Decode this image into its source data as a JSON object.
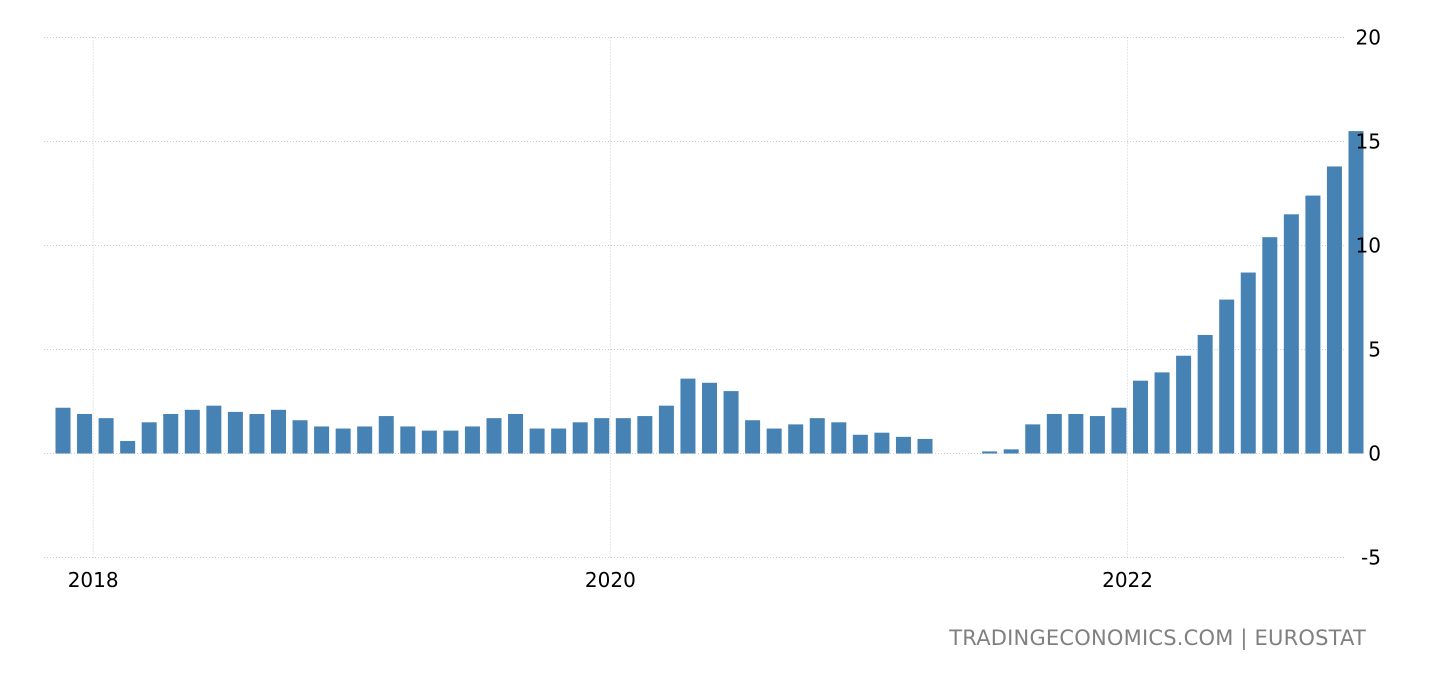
{
  "chart_data": {
    "type": "bar",
    "title": "",
    "xlabel": "",
    "ylabel": "",
    "x": [
      "2017-12",
      "2018-01",
      "2018-02",
      "2018-03",
      "2018-04",
      "2018-05",
      "2018-06",
      "2018-07",
      "2018-08",
      "2018-09",
      "2018-10",
      "2018-11",
      "2018-12",
      "2019-01",
      "2019-02",
      "2019-03",
      "2019-04",
      "2019-05",
      "2019-06",
      "2019-07",
      "2019-08",
      "2019-09",
      "2019-10",
      "2019-11",
      "2019-12",
      "2020-01",
      "2020-02",
      "2020-03",
      "2020-04",
      "2020-05",
      "2020-06",
      "2020-07",
      "2020-08",
      "2020-09",
      "2020-10",
      "2020-11",
      "2020-12",
      "2021-01",
      "2021-02",
      "2021-03",
      "2021-04",
      "2021-05",
      "2021-06",
      "2021-07",
      "2021-08",
      "2021-09",
      "2021-10",
      "2021-11",
      "2021-12",
      "2022-01",
      "2022-02",
      "2022-03",
      "2022-04",
      "2022-05",
      "2022-06",
      "2022-07",
      "2022-08",
      "2022-09",
      "2022-10",
      "2022-11",
      "2022-12"
    ],
    "values": [
      2.2,
      1.9,
      1.7,
      0.6,
      1.5,
      1.9,
      2.1,
      2.3,
      2.0,
      1.9,
      2.1,
      1.6,
      1.3,
      1.2,
      1.3,
      1.8,
      1.3,
      1.1,
      1.1,
      1.3,
      1.7,
      1.9,
      1.2,
      1.2,
      1.5,
      1.7,
      1.7,
      1.8,
      2.3,
      3.6,
      3.4,
      3.0,
      1.6,
      1.2,
      1.4,
      1.7,
      1.5,
      0.9,
      1.0,
      0.8,
      0.7,
      0.0,
      0.0,
      0.1,
      0.2,
      1.4,
      1.9,
      1.9,
      1.8,
      2.2,
      3.5,
      3.9,
      4.7,
      5.7,
      7.4,
      8.7,
      10.4,
      11.5,
      12.4,
      13.8,
      15.5
    ],
    "ylim": [
      -5,
      20
    ],
    "y_ticks": [
      "20",
      "15",
      "10",
      "5",
      "0",
      "-5"
    ],
    "x_ticks": [
      "2018",
      "2020",
      "2022"
    ],
    "grid": true,
    "y_axis_side": "right",
    "bar_color": "#4682b4"
  },
  "footer": {
    "source": "TRADINGECONOMICS.COM | EUROSTAT"
  }
}
